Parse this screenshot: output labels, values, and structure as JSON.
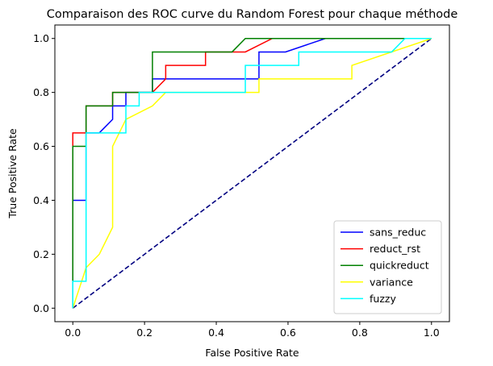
{
  "chart_data": {
    "type": "line",
    "title": "Comparaison des ROC curve du Random Forest pour chaque méthode",
    "xlabel": "False Positive Rate",
    "ylabel": "True Positive Rate",
    "xlim": [
      -0.05,
      1.05
    ],
    "ylim": [
      -0.05,
      1.05
    ],
    "xticks": [
      0.0,
      0.2,
      0.4,
      0.6,
      0.8,
      1.0
    ],
    "xtick_labels": [
      "0.0",
      "0.2",
      "0.4",
      "0.6",
      "0.8",
      "1.0"
    ],
    "yticks": [
      0.0,
      0.2,
      0.4,
      0.6,
      0.8,
      1.0
    ],
    "ytick_labels": [
      "0.0",
      "0.2",
      "0.4",
      "0.6",
      "0.8",
      "1.0"
    ],
    "grid": false,
    "legend_position": "lower-right",
    "reference_line": {
      "x": [
        0,
        1
      ],
      "y": [
        0,
        1
      ],
      "color": "#000080",
      "style": "dashed"
    },
    "series": [
      {
        "name": "sans_reduc",
        "color": "#0000ff",
        "x": [
          0,
          0,
          0.037,
          0.037,
          0.074,
          0.111,
          0.111,
          0.148,
          0.148,
          0.222,
          0.222,
          0.519,
          0.519,
          0.593,
          0.593,
          0.704,
          1.0
        ],
        "y": [
          0,
          0.4,
          0.4,
          0.65,
          0.65,
          0.7,
          0.75,
          0.75,
          0.8,
          0.8,
          0.85,
          0.85,
          0.95,
          0.95,
          0.95,
          1.0,
          1.0
        ]
      },
      {
        "name": "reduct_rst",
        "color": "#ff0000",
        "x": [
          0,
          0,
          0.037,
          0.037,
          0.111,
          0.111,
          0.222,
          0.259,
          0.259,
          0.37,
          0.37,
          0.481,
          0.556,
          1.0
        ],
        "y": [
          0,
          0.65,
          0.65,
          0.75,
          0.75,
          0.8,
          0.8,
          0.85,
          0.9,
          0.9,
          0.95,
          0.95,
          1.0,
          1.0
        ]
      },
      {
        "name": "quickreduct",
        "color": "#008000",
        "x": [
          0,
          0,
          0.037,
          0.037,
          0.111,
          0.111,
          0.222,
          0.222,
          0.444,
          0.481,
          1.0
        ],
        "y": [
          0,
          0.6,
          0.6,
          0.75,
          0.75,
          0.8,
          0.8,
          0.95,
          0.95,
          1.0,
          1.0
        ]
      },
      {
        "name": "variance",
        "color": "#ffff00",
        "x": [
          0,
          0.037,
          0.074,
          0.111,
          0.111,
          0.148,
          0.148,
          0.222,
          0.259,
          0.519,
          0.519,
          0.778,
          0.778,
          1.0
        ],
        "y": [
          0,
          0.15,
          0.2,
          0.3,
          0.6,
          0.7,
          0.7,
          0.75,
          0.8,
          0.8,
          0.85,
          0.85,
          0.9,
          1.0
        ]
      },
      {
        "name": "fuzzy",
        "color": "#00ffff",
        "x": [
          0,
          0,
          0.037,
          0.037,
          0.148,
          0.148,
          0.185,
          0.185,
          0.481,
          0.481,
          0.63,
          0.63,
          0.889,
          0.926,
          1.0
        ],
        "y": [
          0,
          0.1,
          0.1,
          0.65,
          0.65,
          0.75,
          0.75,
          0.8,
          0.8,
          0.9,
          0.9,
          0.95,
          0.95,
          1.0,
          1.0
        ]
      }
    ]
  }
}
